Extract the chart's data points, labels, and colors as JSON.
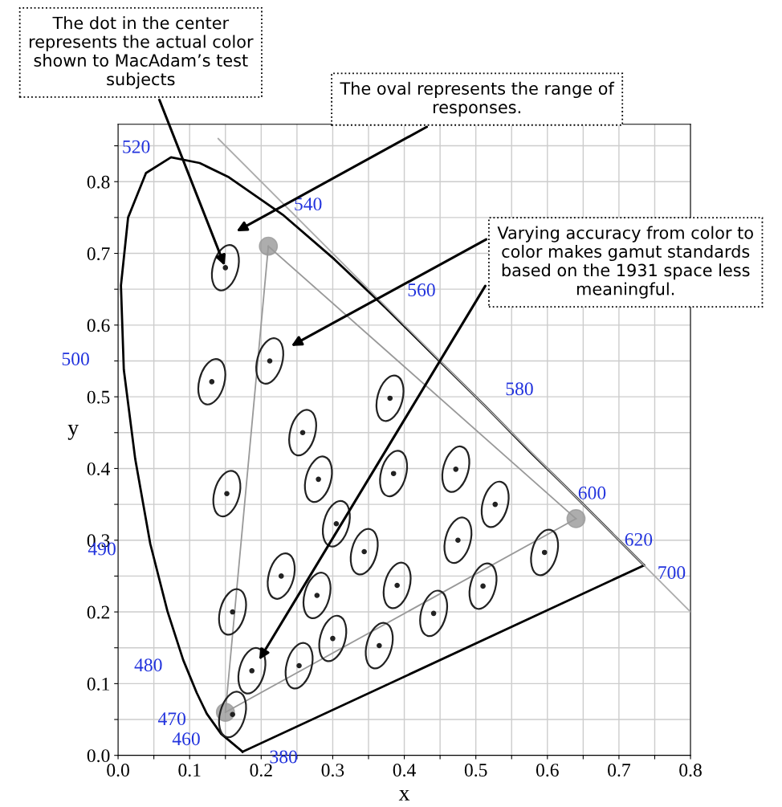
{
  "chart_data": {
    "type": "scatter",
    "xlabel": "x",
    "ylabel": "y",
    "xlim": [
      0,
      0.8
    ],
    "ylim": [
      0,
      0.88
    ],
    "xticks": [
      {
        "value": 0,
        "label": "0.0"
      },
      {
        "value": 0.05,
        "label": null
      },
      0.1,
      {
        "value": 0.15,
        "label": null
      },
      0.2,
      {
        "value": 0.25,
        "label": null
      },
      0.3,
      {
        "value": 0.35,
        "label": null
      },
      0.4,
      {
        "value": 0.45,
        "label": null
      },
      0.5,
      {
        "value": 0.55,
        "label": null
      },
      0.6,
      {
        "value": 0.65,
        "label": null
      },
      0.7,
      {
        "value": 0.75,
        "label": null
      },
      0.8
    ],
    "yticks": [
      {
        "value": 0,
        "label": "0.0"
      },
      {
        "value": 0.05,
        "label": null
      },
      0.1,
      {
        "value": 0.15,
        "label": null
      },
      0.2,
      {
        "value": 0.25,
        "label": null
      },
      0.3,
      {
        "value": 0.35,
        "label": null
      },
      0.4,
      {
        "value": 0.45,
        "label": null
      },
      0.5,
      {
        "value": 0.55,
        "label": null
      },
      0.6,
      {
        "value": 0.65,
        "label": null
      },
      0.7,
      {
        "value": 0.75,
        "label": null
      },
      0.8,
      {
        "value": 0.85,
        "label": null
      }
    ],
    "grid": true,
    "legend": false,
    "series": [
      {
        "type": "line",
        "color": "#000000",
        "marker": "none",
        "x": [
          0.174,
          0.144,
          0.124,
          0.11,
          0.091,
          0.069,
          0.045,
          0.024,
          0.008,
          0.004,
          0.014,
          0.039,
          0.074,
          0.114,
          0.155,
          0.23,
          0.302,
          0.373,
          0.444,
          0.513,
          0.575,
          0.627,
          0.692,
          0.719,
          0.735
        ],
        "values": [
          0.005,
          0.03,
          0.058,
          0.087,
          0.133,
          0.201,
          0.295,
          0.413,
          0.538,
          0.655,
          0.75,
          0.812,
          0.834,
          0.826,
          0.806,
          0.754,
          0.692,
          0.625,
          0.555,
          0.487,
          0.424,
          0.373,
          0.308,
          0.281,
          0.265
        ]
      },
      {
        "type": "line",
        "color": "#000000",
        "marker": "none",
        "x": [
          0.174,
          0.735
        ],
        "values": [
          0.005,
          0.265
        ]
      },
      {
        "type": "line",
        "color": "#aaaaaa",
        "marker": "none",
        "x": [
          0.14,
          0.8
        ],
        "values": [
          0.86,
          0.2
        ]
      },
      {
        "type": "line",
        "color": "#999999",
        "marker": "none",
        "x": [
          0.15,
          0.21
        ],
        "values": [
          0.06,
          0.71
        ]
      },
      {
        "type": "line",
        "color": "#999999",
        "marker": "none",
        "x": [
          0.21,
          0.64
        ],
        "values": [
          0.71,
          0.33
        ]
      },
      {
        "type": "line",
        "color": "#999999",
        "marker": "none",
        "x": [
          0.15,
          0.64
        ],
        "values": [
          0.06,
          0.33
        ]
      },
      {
        "type": "scatter",
        "color": "#999999",
        "marker": "circle",
        "x": [
          0.21,
          0.64,
          0.15
        ],
        "values": [
          0.71,
          0.33,
          0.06
        ]
      },
      {
        "color": "#222222",
        "marker": "circle",
        "x": [
          0.16,
          0.187,
          0.253,
          0.15,
          0.131,
          0.212,
          0.258,
          0.152,
          0.28,
          0.38,
          0.16,
          0.228,
          0.305,
          0.385,
          0.472,
          0.527,
          0.475,
          0.51,
          0.596,
          0.344,
          0.39,
          0.441,
          0.278,
          0.3,
          0.365
        ],
        "values": [
          0.057,
          0.118,
          0.125,
          0.68,
          0.521,
          0.55,
          0.45,
          0.365,
          0.385,
          0.498,
          0.2,
          0.25,
          0.323,
          0.393,
          0.399,
          0.35,
          0.3,
          0.236,
          0.283,
          0.284,
          0.237,
          0.198,
          0.223,
          0.163,
          0.153
        ]
      }
    ],
    "annotations": [
      {
        "text": "380",
        "x": 0.174,
        "y": 0.005
      },
      {
        "text": "460",
        "x": 0.144,
        "y": 0.03
      },
      {
        "text": "470",
        "x": 0.124,
        "y": 0.058
      },
      {
        "text": "480",
        "x": 0.091,
        "y": 0.133
      },
      {
        "text": "490",
        "x": 0.045,
        "y": 0.295
      },
      {
        "text": "500",
        "x": 0.008,
        "y": 0.538
      },
      {
        "text": "520",
        "x": 0.074,
        "y": 0.834
      },
      {
        "text": "540",
        "x": 0.23,
        "y": 0.754
      },
      {
        "text": "560",
        "x": 0.373,
        "y": 0.625
      },
      {
        "text": "580",
        "x": 0.513,
        "y": 0.487
      },
      {
        "text": "600",
        "x": 0.627,
        "y": 0.373
      },
      {
        "text": "620",
        "x": 0.692,
        "y": 0.308
      },
      {
        "text": "700",
        "x": 0.735,
        "y": 0.265
      },
      {
        "text": "The dot in the center\nrepresents the actual color\nshown to MacAdam’s test\nsubjects",
        "x": 0.15,
        "y": 0.68
      },
      "The oval represents the range of\nresponses.",
      "Varying accuracy from color to\ncolor makes gamut standards\nbased on the 1931 space less\nmeaningful."
    ]
  }
}
